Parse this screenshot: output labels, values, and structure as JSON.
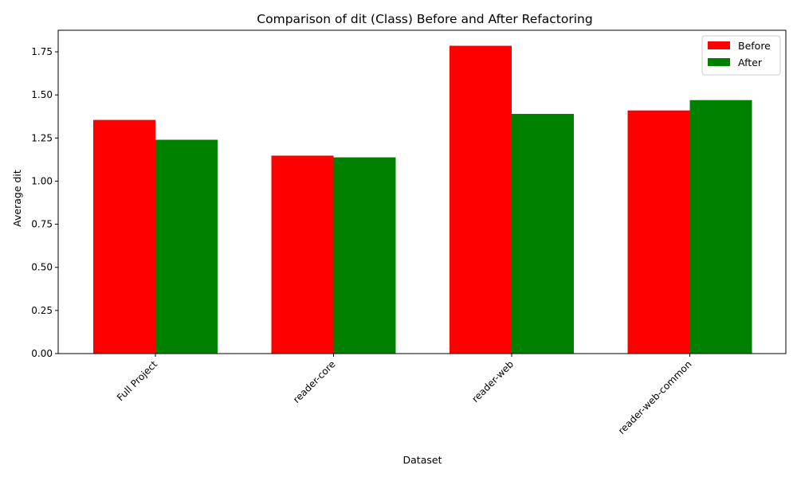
{
  "chart_data": {
    "type": "bar",
    "title": "Comparison of dit (Class) Before and After Refactoring",
    "xlabel": "Dataset",
    "ylabel": "Average dit",
    "categories": [
      "Full Project",
      "reader-core",
      "reader-web",
      "reader-web-common"
    ],
    "series": [
      {
        "name": "Before",
        "color": "#ff0000",
        "values": [
          1.355,
          1.148,
          1.785,
          1.41
        ]
      },
      {
        "name": "After",
        "color": "#008000",
        "values": [
          1.24,
          1.138,
          1.39,
          1.47
        ]
      }
    ],
    "ylim": [
      0,
      1.875
    ],
    "yticks": [
      "0.00",
      "0.25",
      "0.50",
      "0.75",
      "1.00",
      "1.25",
      "1.50",
      "1.75"
    ],
    "legend_position": "top-right",
    "grid": false
  }
}
